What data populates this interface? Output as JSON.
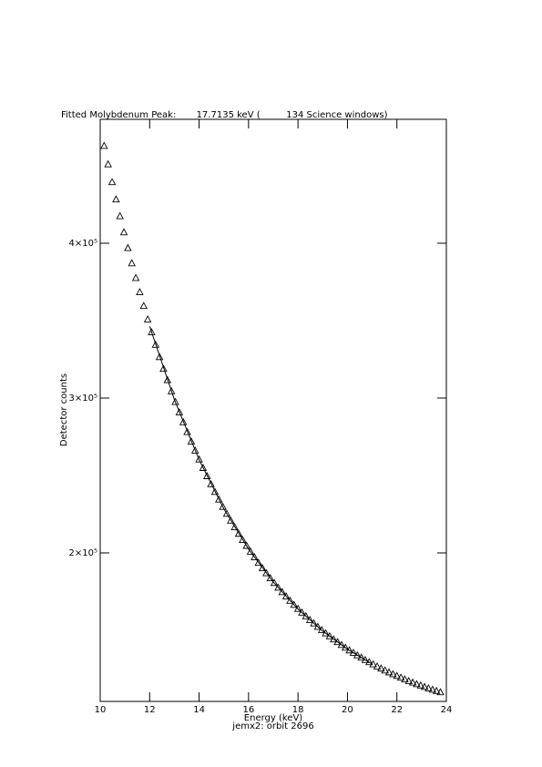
{
  "chart_data": {
    "type": "scatter",
    "title": "Fitted Molybdenum Peak:       17.7135 keV (         134 Science windows)",
    "x_label": "Energy (keV)",
    "y_label": "Detector counts",
    "subtitle": "jemx2: orbit 2696",
    "xlim": [
      10,
      24
    ],
    "xticks": [
      10,
      12,
      14,
      16,
      18,
      20,
      22,
      24
    ],
    "ylim": [
      104100,
      480000
    ],
    "yticks": [
      {
        "value": 200000,
        "label": "2×10⁵"
      },
      {
        "value": 300000,
        "label": "3×10⁵"
      },
      {
        "value": 400000,
        "label": "4×10⁵"
      }
    ],
    "color": "#000000",
    "series": [
      {
        "marker": "triangle",
        "x": [
          10.16,
          10.32,
          10.48,
          10.64,
          10.8,
          10.96,
          11.12,
          11.28,
          11.44,
          11.6,
          11.76,
          11.92,
          12.08,
          12.24,
          12.4,
          12.56,
          12.72,
          12.88,
          13.04,
          13.2,
          13.36,
          13.52,
          13.68,
          13.84,
          14,
          14.16,
          14.32,
          14.48,
          14.64,
          14.8,
          14.96,
          15.12,
          15.28,
          15.44,
          15.6,
          15.76,
          15.92,
          16.08,
          16.24,
          16.4,
          16.56,
          16.72,
          16.88,
          17.04,
          17.2,
          17.36,
          17.52,
          17.68,
          17.84,
          18,
          18.16,
          18.32,
          18.48,
          18.64,
          18.8,
          18.96,
          19.12,
          19.28,
          19.44,
          19.6,
          19.76,
          19.92,
          20.08,
          20.24,
          20.4,
          20.56,
          20.72,
          20.88,
          21.04,
          21.2,
          21.36,
          21.52,
          21.68,
          21.84,
          22,
          22.16,
          22.32,
          22.48,
          22.64,
          22.8,
          22.96,
          23.12,
          23.28,
          23.44,
          23.6,
          23.76
        ],
        "values": [
          462700,
          450800,
          439300,
          428100,
          417300,
          406900,
          396700,
          386900,
          377400,
          368200,
          359300,
          350600,
          342300,
          334200,
          326300,
          318700,
          311400,
          304200,
          297300,
          290600,
          284200,
          277900,
          271800,
          265900,
          260200,
          254700,
          249400,
          244200,
          239200,
          234300,
          229600,
          225100,
          220700,
          216400,
          212200,
          208200,
          204400,
          200600,
          197000,
          193400,
          190000,
          186700,
          183500,
          180400,
          177400,
          174500,
          171700,
          168900,
          166300,
          163700,
          161300,
          158900,
          156500,
          154300,
          152100,
          150000,
          147900,
          146000,
          144000,
          142200,
          140400,
          138600,
          136900,
          135300,
          133700,
          132200,
          130700,
          129300,
          127900,
          126500,
          125200,
          123900,
          122700,
          121500,
          120400,
          119300,
          118200,
          117100,
          116100,
          115100,
          114200,
          113300,
          112400,
          111500,
          110700,
          109900
        ]
      },
      {
        "marker": "line",
        "x": [
          12,
          13,
          14,
          15,
          16,
          17,
          18,
          19,
          20,
          21
        ],
        "values": [
          346400,
          299000,
          260200,
          228500,
          202500,
          181200,
          163700,
          149500,
          137800,
          128200
        ]
      }
    ]
  }
}
